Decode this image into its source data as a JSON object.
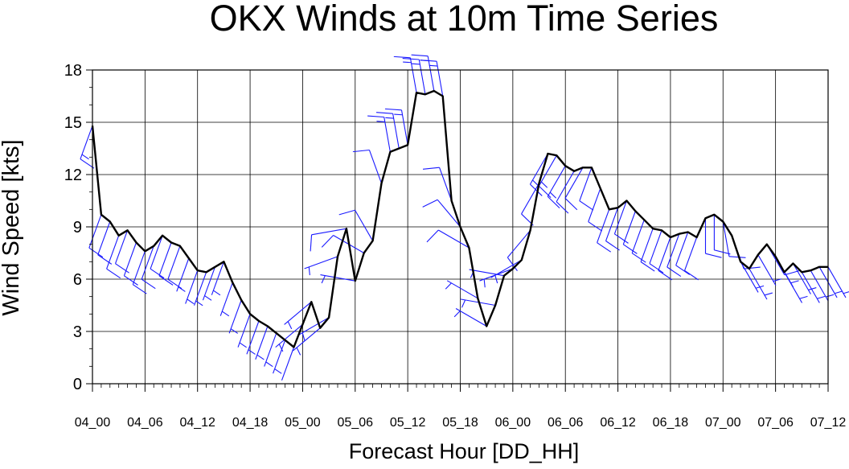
{
  "chart_data": {
    "type": "line",
    "title": "OKX Winds at 10m Time Series",
    "xlabel": "Forecast Hour [DD_HH]",
    "ylabel": "Wind Speed [kts]",
    "ylim": [
      0,
      18
    ],
    "xlim_hours": [
      0,
      84
    ],
    "grid": true,
    "yticks": [
      0,
      3,
      6,
      9,
      12,
      15,
      18
    ],
    "xticks": [
      {
        "hour": 0,
        "label": "04_00"
      },
      {
        "hour": 6,
        "label": "04_06"
      },
      {
        "hour": 12,
        "label": "04_12"
      },
      {
        "hour": 18,
        "label": "04_18"
      },
      {
        "hour": 24,
        "label": "05_00"
      },
      {
        "hour": 30,
        "label": "05_06"
      },
      {
        "hour": 36,
        "label": "05_12"
      },
      {
        "hour": 42,
        "label": "05_18"
      },
      {
        "hour": 48,
        "label": "06_00"
      },
      {
        "hour": 54,
        "label": "06_06"
      },
      {
        "hour": 60,
        "label": "06_12"
      },
      {
        "hour": 66,
        "label": "06_18"
      },
      {
        "hour": 72,
        "label": "07_00"
      },
      {
        "hour": 78,
        "label": "07_06"
      },
      {
        "hour": 84,
        "label": "07_12"
      }
    ],
    "series": [
      {
        "color": "#000000",
        "x": [
          0,
          1,
          2,
          3,
          4,
          5,
          6,
          7,
          8,
          9,
          10,
          11,
          12,
          13,
          14,
          15,
          16,
          17,
          18,
          19,
          20,
          21,
          22,
          23,
          24,
          25,
          26,
          27,
          28,
          29,
          30,
          31,
          32,
          33,
          34,
          35,
          36,
          37,
          38,
          39,
          40,
          41,
          42,
          43,
          44,
          45,
          46,
          47,
          48,
          49,
          50,
          51,
          52,
          53,
          54,
          55,
          56,
          57,
          58,
          59,
          60,
          61,
          62,
          63,
          64,
          65,
          66,
          67,
          68,
          69,
          70,
          71,
          72,
          73,
          74,
          75,
          76,
          77,
          78,
          79,
          80,
          81,
          82,
          83,
          84
        ],
        "y": [
          14.8,
          9.7,
          9.3,
          8.5,
          8.8,
          8.1,
          7.6,
          7.9,
          8.5,
          8.1,
          7.9,
          7.2,
          6.5,
          6.4,
          6.7,
          7.0,
          5.8,
          4.8,
          4.0,
          3.6,
          3.3,
          2.9,
          2.5,
          2.1,
          3.4,
          4.7,
          3.2,
          3.8,
          7.3,
          8.9,
          5.9,
          7.5,
          8.2,
          11.5,
          13.3,
          13.5,
          13.7,
          16.7,
          16.6,
          16.8,
          16.5,
          10.5,
          9.0,
          7.8,
          4.9,
          3.3,
          4.5,
          6.2,
          6.6,
          7.1,
          8.8,
          11.5,
          13.2,
          13.1,
          12.5,
          12.2,
          12.4,
          12.4,
          11.2,
          10.0,
          10.1,
          10.5,
          9.9,
          9.4,
          8.9,
          8.8,
          8.4,
          8.6,
          8.7,
          8.4,
          9.5,
          9.7,
          9.3,
          8.5,
          7.0,
          6.6,
          7.4,
          8.0,
          7.3,
          6.4,
          6.9,
          6.4,
          6.5,
          6.7,
          6.7
        ]
      }
    ],
    "barbs": {
      "color": "#1a1aff",
      "direction_deg": [
        200,
        200,
        200,
        200,
        200,
        200,
        200,
        200,
        200,
        200,
        200,
        200,
        200,
        200,
        200,
        200,
        200,
        200,
        200,
        200,
        200,
        200,
        200,
        200,
        230,
        230,
        230,
        240,
        250,
        260,
        280,
        300,
        330,
        340,
        350,
        350,
        350,
        350,
        350,
        350,
        350,
        340,
        320,
        300,
        300,
        300,
        280,
        280,
        250,
        240,
        220,
        210,
        210,
        210,
        210,
        210,
        210,
        200,
        200,
        200,
        200,
        200,
        200,
        200,
        200,
        200,
        200,
        200,
        200,
        200,
        180,
        180,
        170,
        160,
        150,
        150,
        150,
        150,
        150,
        150,
        150,
        150,
        150,
        150,
        150
      ]
    }
  }
}
